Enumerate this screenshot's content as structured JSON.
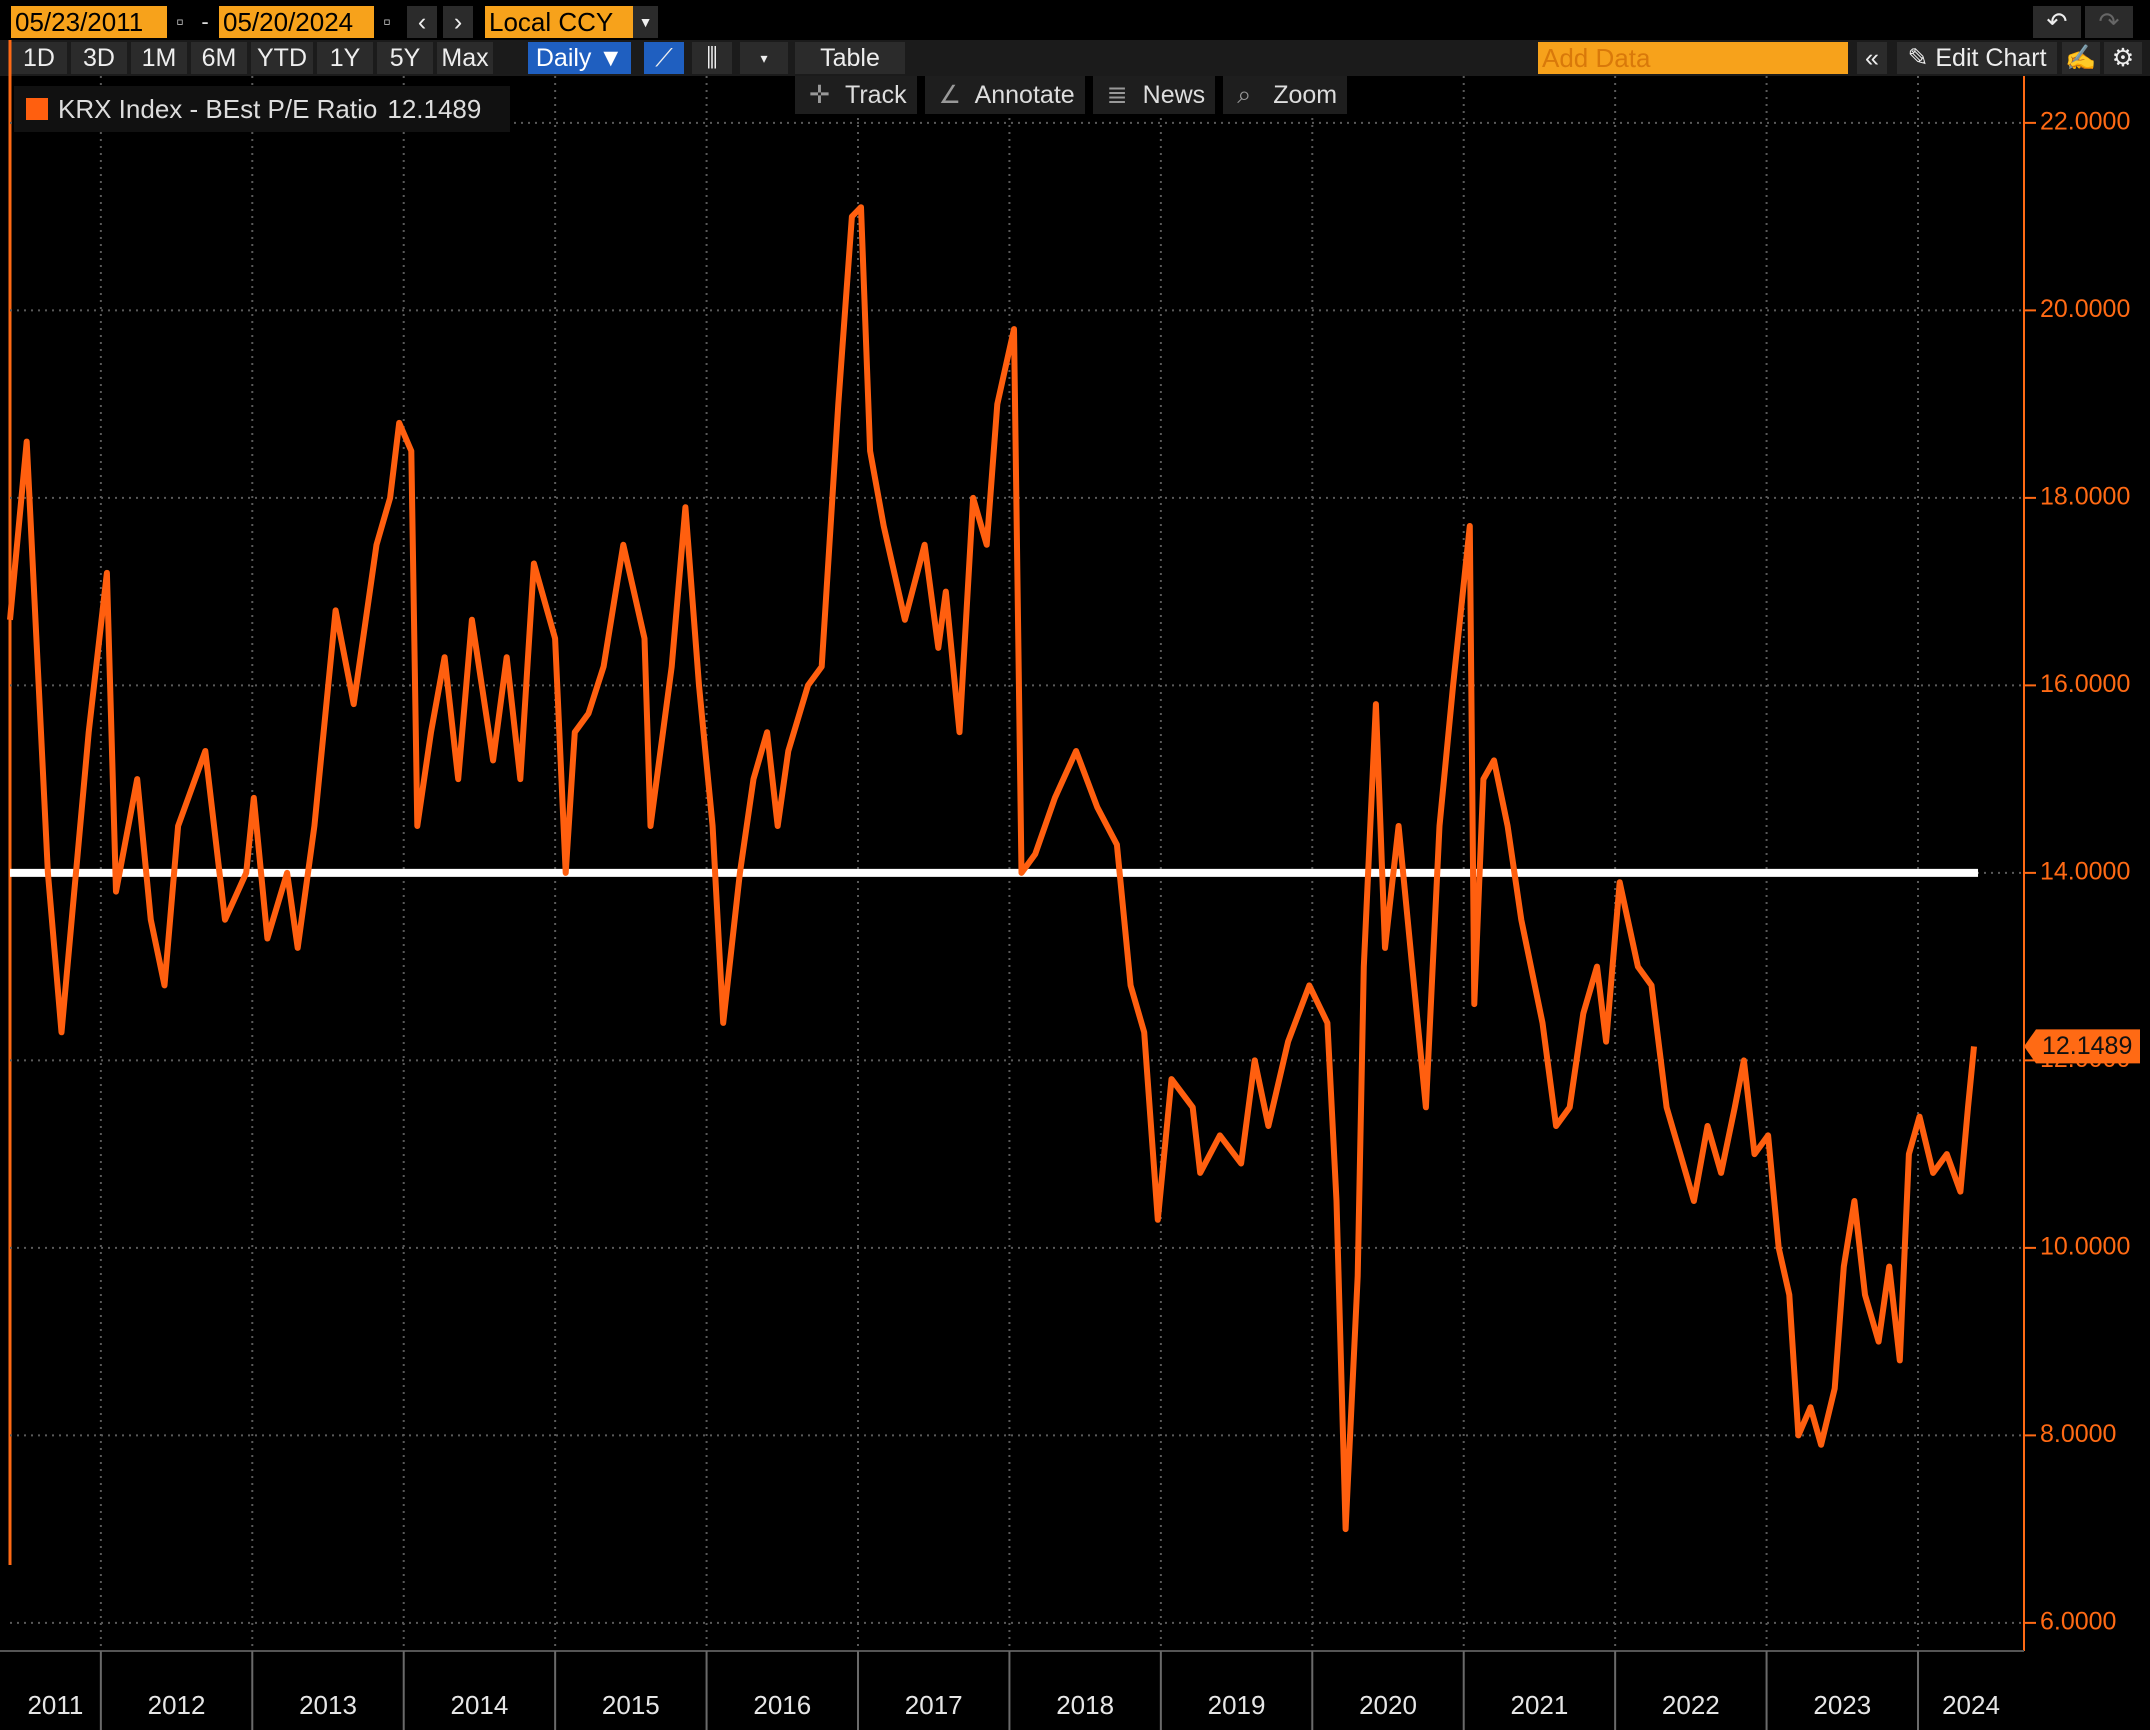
{
  "toolbar": {
    "start_date": "05/23/2011",
    "end_date": "05/20/2024",
    "currency": "Local CCY",
    "periods": [
      "1D",
      "3D",
      "1M",
      "6M",
      "YTD",
      "1Y",
      "5Y",
      "Max"
    ],
    "frequency": "Daily",
    "table": "Table",
    "add_data": "Add Data",
    "edit_chart": "Edit Chart",
    "tools": [
      "Track",
      "Annotate",
      "News",
      "Zoom"
    ]
  },
  "chart_data": {
    "type": "line",
    "x": [
      2011.4,
      2011.51,
      2011.65,
      2011.74,
      2011.92,
      2012.04,
      2012.1,
      2012.24,
      2012.33,
      2012.42,
      2012.51,
      2012.69,
      2012.82,
      2012.96,
      2013.01,
      2013.1,
      2013.23,
      2013.3,
      2013.41,
      2013.55,
      2013.67,
      2013.82,
      2013.91,
      2013.97,
      2014.05,
      2014.09,
      2014.18,
      2014.27,
      2014.36,
      2014.45,
      2014.59,
      2014.68,
      2014.77,
      2014.86,
      2015.0,
      2015.07,
      2015.13,
      2015.22,
      2015.32,
      2015.45,
      2015.59,
      2015.63,
      2015.77,
      2015.86,
      2015.95,
      2016.04,
      2016.11,
      2016.22,
      2016.31,
      2016.4,
      2016.47,
      2016.54,
      2016.67,
      2016.76,
      2016.87,
      2016.96,
      2017.02,
      2017.08,
      2017.17,
      2017.31,
      2017.44,
      2017.53,
      2017.58,
      2017.67,
      2017.76,
      2017.85,
      2017.92,
      2018.03,
      2018.08,
      2018.17,
      2018.3,
      2018.44,
      2018.58,
      2018.71,
      2018.8,
      2018.89,
      2018.98,
      2019.07,
      2019.21,
      2019.26,
      2019.39,
      2019.53,
      2019.62,
      2019.71,
      2019.84,
      2019.98,
      2020.1,
      2020.16,
      2020.22,
      2020.3,
      2020.34,
      2020.42,
      2020.48,
      2020.57,
      2020.66,
      2020.75,
      2020.84,
      2020.93,
      2021.04,
      2021.07,
      2021.13,
      2021.2,
      2021.29,
      2021.38,
      2021.52,
      2021.61,
      2021.7,
      2021.79,
      2021.88,
      2021.94,
      2022.03,
      2022.15,
      2022.24,
      2022.34,
      2022.43,
      2022.52,
      2022.61,
      2022.7,
      2022.79,
      2022.85,
      2022.92,
      2023.01,
      2023.08,
      2023.15,
      2023.21,
      2023.29,
      2023.36,
      2023.45,
      2023.51,
      2023.58,
      2023.65,
      2023.74,
      2023.81,
      2023.88,
      2023.94,
      2024.01,
      2024.1,
      2024.19,
      2024.28,
      2024.33,
      2024.37
    ],
    "series": [
      {
        "name": "KRX Index - BEst P/E Ratio",
        "color": "#ff5f0f",
        "values": [
          16.7,
          18.6,
          14.0,
          12.3,
          15.5,
          17.2,
          13.8,
          15.0,
          13.5,
          12.8,
          14.5,
          15.3,
          13.5,
          14.0,
          14.8,
          13.3,
          14.0,
          13.2,
          14.5,
          16.8,
          15.8,
          17.5,
          18.0,
          18.8,
          18.5,
          14.5,
          15.5,
          16.3,
          15.0,
          16.7,
          15.2,
          16.3,
          15.0,
          17.3,
          16.5,
          14.0,
          15.5,
          15.7,
          16.2,
          17.5,
          16.5,
          14.5,
          16.2,
          17.9,
          16.0,
          14.5,
          12.4,
          14.0,
          15.0,
          15.5,
          14.5,
          15.3,
          16.0,
          16.2,
          19.0,
          21.0,
          21.1,
          18.5,
          17.7,
          16.7,
          17.5,
          16.4,
          17.0,
          15.5,
          18.0,
          17.5,
          19.0,
          19.8,
          14.0,
          14.2,
          14.8,
          15.3,
          14.7,
          14.3,
          12.8,
          12.3,
          10.3,
          11.8,
          11.5,
          10.8,
          11.2,
          10.9,
          12.0,
          11.3,
          12.2,
          12.8,
          12.4,
          10.5,
          7.0,
          9.7,
          13.0,
          15.8,
          13.2,
          14.5,
          13.0,
          11.5,
          14.5,
          16.0,
          17.7,
          12.6,
          15.0,
          15.2,
          14.5,
          13.5,
          12.4,
          11.3,
          11.5,
          12.5,
          13.0,
          12.2,
          13.9,
          13.0,
          12.8,
          11.5,
          11.0,
          10.5,
          11.3,
          10.8,
          11.5,
          12.0,
          11.0,
          11.2,
          10.0,
          9.5,
          8.0,
          8.3,
          7.9,
          8.5,
          9.8,
          10.5,
          9.5,
          9.0,
          9.8,
          8.8,
          11.0,
          11.4,
          10.8,
          11.0,
          10.6,
          11.5,
          12.1489
        ]
      }
    ],
    "reference_line": {
      "value": 14,
      "color": "#ffffff"
    },
    "xlim": [
      2011.4,
      2024.7
    ],
    "xticks": [
      2012,
      2013,
      2014,
      2015,
      2016,
      2017,
      2018,
      2019,
      2020,
      2021,
      2022,
      2023,
      2024
    ],
    "year_labels": [
      "2011",
      "2012",
      "2013",
      "2014",
      "2015",
      "2016",
      "2017",
      "2018",
      "2019",
      "2020",
      "2021",
      "2022",
      "2023",
      "2024"
    ],
    "ylim": [
      5.7,
      22.5
    ],
    "yticks": [
      {
        "value": 6,
        "label": "6.0000"
      },
      {
        "value": 8,
        "label": "8.0000"
      },
      {
        "value": 10,
        "label": "10.0000"
      },
      {
        "value": 12,
        "label": "12.0000"
      },
      {
        "value": 14,
        "label": "14.0000"
      },
      {
        "value": 16,
        "label": "16.0000"
      },
      {
        "value": 18,
        "label": "18.0000"
      },
      {
        "value": 20,
        "label": "20.0000"
      },
      {
        "value": 22,
        "label": "22.0000"
      }
    ],
    "grid": true,
    "axis_color": "#ff6a14"
  }
}
